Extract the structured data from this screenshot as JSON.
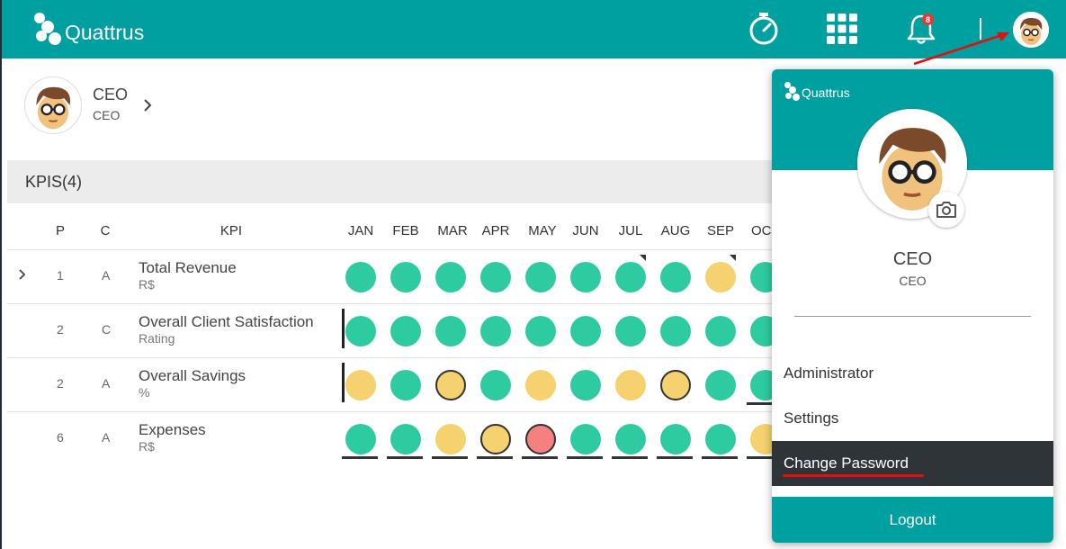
{
  "app": {
    "brand": "Quattrus",
    "notification_count": "8"
  },
  "user": {
    "name": "CEO",
    "role": "CEO"
  },
  "kpi_section": {
    "title": "KPIS(4)"
  },
  "table": {
    "headers": {
      "p": "P",
      "c": "C",
      "kpi": "KPI"
    },
    "months": [
      "JAN",
      "FEB",
      "MAR",
      "APR",
      "MAY",
      "JUN",
      "JUL",
      "AUG",
      "SEP",
      "OC"
    ],
    "rows": [
      {
        "p": "1",
        "c": "A",
        "name": "Total Revenue",
        "unit": "R$"
      },
      {
        "p": "2",
        "c": "C",
        "name": "Overall Client Satisfaction",
        "unit": "Rating"
      },
      {
        "p": "2",
        "c": "A",
        "name": "Overall Savings",
        "unit": "%"
      },
      {
        "p": "6",
        "c": "A",
        "name": "Expenses",
        "unit": "R$"
      }
    ]
  },
  "status_grid": [
    [
      "green",
      "green",
      "green",
      "green",
      "green",
      "green",
      "green",
      "green",
      "yellow",
      "green"
    ],
    [
      "green",
      "green",
      "green",
      "green",
      "green",
      "green",
      "green",
      "green",
      "green",
      "green"
    ],
    [
      "yellow",
      "green",
      "yellow-ringed",
      "green",
      "yellow",
      "green",
      "yellow",
      "yellow-ringed",
      "green",
      "green"
    ],
    [
      "green",
      "green",
      "yellow",
      "yellow-ringed",
      "red-ringed",
      "green",
      "green",
      "green",
      "green",
      "yellow"
    ]
  ],
  "status_colors": {
    "green": "#2ecba0",
    "yellow": "#f5d26f",
    "red": "#f58080",
    "brand": "#00a0a0"
  },
  "icons": [
    "stopwatch-icon",
    "apps-grid-icon",
    "bell-icon",
    "camera-icon",
    "chevron-right-icon",
    "kebab-menu-icon"
  ],
  "profile_menu": {
    "brand": "Quattrus",
    "name": "CEO",
    "role": "CEO",
    "items": [
      "Administrator",
      "Settings",
      "Change Password"
    ],
    "logout": "Logout"
  }
}
